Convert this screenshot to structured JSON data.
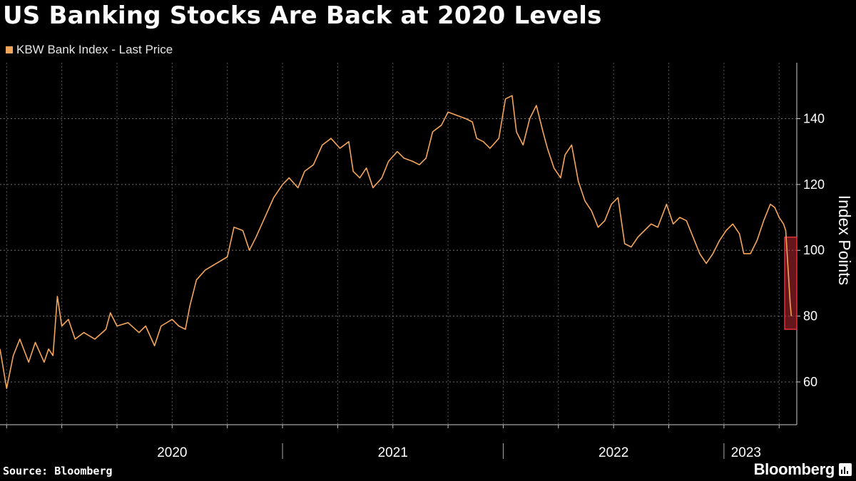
{
  "chart_data": {
    "type": "line",
    "title": "US Banking Stocks Are Back at 2020 Levels",
    "legend": [
      {
        "label": "KBW Bank Index - Last Price",
        "color": "#f5a55a"
      }
    ],
    "ylabel": "Index Points",
    "ylim": [
      47,
      157
    ],
    "yticks": [
      60,
      80,
      100,
      120,
      140
    ],
    "ytick_labels": [
      "60",
      "80",
      "100",
      "120",
      "140"
    ],
    "xlim": [
      2019.72,
      2023.33
    ],
    "x_labels": [
      {
        "label": "2020",
        "x": 2020.5
      },
      {
        "label": "2021",
        "x": 2021.5
      },
      {
        "label": "2022",
        "x": 2022.5
      },
      {
        "label": "2023",
        "x": 2023.1
      }
    ],
    "year_separators": [
      2021.0,
      2022.0,
      2023.0
    ],
    "gridlines": true,
    "series": [
      {
        "name": "KBW Bank Index - Last Price",
        "color": "#f5a55a",
        "points": [
          [
            2019.72,
            70
          ],
          [
            2019.75,
            58
          ],
          [
            2019.78,
            68
          ],
          [
            2019.81,
            73
          ],
          [
            2019.85,
            66
          ],
          [
            2019.88,
            72
          ],
          [
            2019.92,
            66
          ],
          [
            2019.94,
            70
          ],
          [
            2019.96,
            68
          ],
          [
            2019.98,
            86
          ],
          [
            2020.0,
            77
          ],
          [
            2020.03,
            79
          ],
          [
            2020.06,
            73
          ],
          [
            2020.1,
            75
          ],
          [
            2020.15,
            73
          ],
          [
            2020.2,
            76
          ],
          [
            2020.22,
            81
          ],
          [
            2020.25,
            77
          ],
          [
            2020.3,
            78
          ],
          [
            2020.35,
            75
          ],
          [
            2020.38,
            77
          ],
          [
            2020.42,
            71
          ],
          [
            2020.45,
            77
          ],
          [
            2020.5,
            79
          ],
          [
            2020.53,
            77
          ],
          [
            2020.56,
            76
          ],
          [
            2020.58,
            83
          ],
          [
            2020.61,
            91
          ],
          [
            2020.65,
            94
          ],
          [
            2020.7,
            96
          ],
          [
            2020.75,
            98
          ],
          [
            2020.78,
            107
          ],
          [
            2020.82,
            106
          ],
          [
            2020.85,
            100
          ],
          [
            2020.88,
            104
          ],
          [
            2020.92,
            110
          ],
          [
            2020.96,
            116
          ],
          [
            2021.0,
            120
          ],
          [
            2021.03,
            122
          ],
          [
            2021.07,
            119
          ],
          [
            2021.1,
            124
          ],
          [
            2021.14,
            126
          ],
          [
            2021.18,
            132
          ],
          [
            2021.22,
            134
          ],
          [
            2021.26,
            131
          ],
          [
            2021.3,
            133
          ],
          [
            2021.32,
            124
          ],
          [
            2021.35,
            122
          ],
          [
            2021.38,
            125
          ],
          [
            2021.41,
            119
          ],
          [
            2021.45,
            122
          ],
          [
            2021.48,
            127
          ],
          [
            2021.52,
            130
          ],
          [
            2021.55,
            128
          ],
          [
            2021.59,
            127
          ],
          [
            2021.62,
            126
          ],
          [
            2021.65,
            128
          ],
          [
            2021.68,
            136
          ],
          [
            2021.72,
            138
          ],
          [
            2021.75,
            142
          ],
          [
            2021.79,
            141
          ],
          [
            2021.83,
            140
          ],
          [
            2021.86,
            139
          ],
          [
            2021.88,
            134
          ],
          [
            2021.91,
            133
          ],
          [
            2021.94,
            131
          ],
          [
            2021.98,
            134
          ],
          [
            2022.01,
            146
          ],
          [
            2022.04,
            147
          ],
          [
            2022.06,
            136
          ],
          [
            2022.09,
            132
          ],
          [
            2022.12,
            140
          ],
          [
            2022.15,
            144
          ],
          [
            2022.18,
            136
          ],
          [
            2022.2,
            131
          ],
          [
            2022.23,
            125
          ],
          [
            2022.26,
            122
          ],
          [
            2022.28,
            129
          ],
          [
            2022.31,
            132
          ],
          [
            2022.34,
            121
          ],
          [
            2022.37,
            115
          ],
          [
            2022.4,
            112
          ],
          [
            2022.43,
            107
          ],
          [
            2022.46,
            109
          ],
          [
            2022.49,
            114
          ],
          [
            2022.52,
            116
          ],
          [
            2022.55,
            102
          ],
          [
            2022.58,
            101
          ],
          [
            2022.61,
            104
          ],
          [
            2022.64,
            106
          ],
          [
            2022.67,
            108
          ],
          [
            2022.7,
            107
          ],
          [
            2022.74,
            114
          ],
          [
            2022.77,
            108
          ],
          [
            2022.8,
            110
          ],
          [
            2022.83,
            109
          ],
          [
            2022.86,
            104
          ],
          [
            2022.89,
            99
          ],
          [
            2022.92,
            96
          ],
          [
            2022.95,
            99
          ],
          [
            2022.98,
            103
          ],
          [
            2023.01,
            106
          ],
          [
            2023.04,
            108
          ],
          [
            2023.07,
            105
          ],
          [
            2023.09,
            99
          ],
          [
            2023.12,
            99
          ],
          [
            2023.15,
            103
          ],
          [
            2023.18,
            109
          ],
          [
            2023.21,
            114
          ],
          [
            2023.23,
            113
          ],
          [
            2023.25,
            110
          ],
          [
            2023.27,
            108
          ],
          [
            2023.28,
            106
          ],
          [
            2023.29,
            95
          ],
          [
            2023.3,
            84
          ],
          [
            2023.305,
            80
          ]
        ]
      }
    ],
    "annotations": [
      {
        "type": "highlight-box",
        "x0": 2023.275,
        "x1": 2023.33,
        "y0": 76,
        "y1": 104,
        "color": "#e0313a"
      }
    ],
    "source": "Source: Bloomberg",
    "brand": "Bloomberg"
  }
}
